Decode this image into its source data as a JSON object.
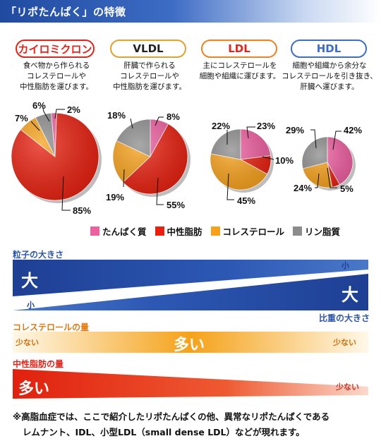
{
  "title": "「リポたんぱく」の特徴",
  "categories": [
    {
      "name": "カイロミクロン",
      "color": "#e2231a",
      "desc": [
        "食べ物から作られる",
        "コレステロールや",
        "中性脂肪を運びます。"
      ]
    },
    {
      "name": "VLDL",
      "color": "#e0a22a",
      "desc": [
        "肝臓で作られる",
        "コレステロールや",
        "中性脂肪を運びます。"
      ]
    },
    {
      "name": "LDL",
      "color": "#f08020",
      "desc": [
        "主にコレステロールを",
        "細胞や組織に運びます。"
      ]
    },
    {
      "name": "HDL",
      "color": "#3b6ec4",
      "desc": [
        "細胞や組織から余分な",
        "コレステロールを引き抜き、",
        "肝臓へ運びます。"
      ]
    }
  ],
  "chart_data": {
    "type": "pie",
    "components": [
      "たんぱく質",
      "中性脂肪",
      "コレステロール",
      "リン脂質"
    ],
    "colors": {
      "たんぱく質": "#ee5fa0",
      "中性脂肪": "#e8200f",
      "コレステロール": "#f7a11a",
      "リン脂質": "#8c8c8c"
    },
    "pies": [
      {
        "name": "カイロミクロン",
        "values": {
          "たんぱく質": 2,
          "中性脂肪": 85,
          "コレステロール": 7,
          "リン脂質": 6
        }
      },
      {
        "name": "VLDL",
        "values": {
          "たんぱく質": 8,
          "中性脂肪": 55,
          "コレステロール": 19,
          "リン脂質": 18
        }
      },
      {
        "name": "LDL",
        "values": {
          "たんぱく質": 23,
          "中性脂肪": 10,
          "コレステロール": 45,
          "リン脂質": 22
        }
      },
      {
        "name": "HDL",
        "values": {
          "たんぱく質": 42,
          "中性脂肪": 5,
          "コレステロール": 24,
          "リン脂質": 29
        }
      }
    ],
    "legend_position": "bottom"
  },
  "labels": {
    "cm": {
      "p2": "2%",
      "p85": "85%",
      "p7": "7%",
      "p6": "6%"
    },
    "vldl": {
      "p8": "8%",
      "p55": "55%",
      "p19": "19%",
      "p18": "18%"
    },
    "ldl": {
      "p23": "23%",
      "p10": "10%",
      "p45": "45%",
      "p22": "22%"
    },
    "hdl": {
      "p42": "42%",
      "p5": "5%",
      "p24": "24%",
      "p29": "29%"
    }
  },
  "scales": {
    "particle": {
      "label": "粒子の大きさ",
      "big": "大",
      "small": "小"
    },
    "density": {
      "label": "比重の大きさ",
      "big": "大",
      "small": "小"
    },
    "cholesterol": {
      "label": "コレステロールの量",
      "many": "多い",
      "few_left": "少ない",
      "few_right": "少ない"
    },
    "triglyceride": {
      "label": "中性脂肪の量",
      "many": "多い",
      "few": "少ない"
    }
  },
  "footnote": [
    "※高脂血症では、ここで紹介したリポたんぱくの他、異常なリポたんぱくである",
    "レムナント、IDL、小型LDL（small dense LDL）などが現れます。"
  ]
}
